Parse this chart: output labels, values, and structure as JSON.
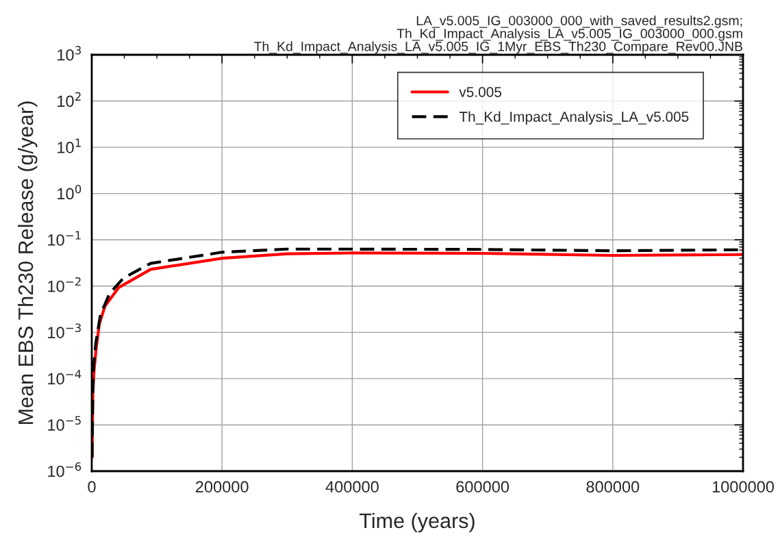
{
  "chart_data": {
    "type": "line",
    "title": "LA_v5.005_IG_003000_000_with_saved_results2.gsm;\nTh_Kd_Impact_Analysis_LA_v5.005_IG_003000_000.gsm\nTh_Kd_Impact_Analysis_LA_v5.005_IG_1Myr_EBS_Th230_Compare_Rev00.JNB",
    "xlabel": "Time (years)",
    "ylabel": "Mean EBS Th230 Release (g/year)",
    "series": [
      {
        "name": "v5.005",
        "color": "#ff0000",
        "line_style": "solid",
        "x": [
          500,
          1700,
          3500,
          7000,
          11600,
          20300,
          41300,
          90400,
          200000,
          300000,
          400000,
          600000,
          800000,
          1000000
        ],
        "values": [
          2e-06,
          4.9e-05,
          0.00015,
          0.00048,
          0.0015,
          0.0037,
          0.0093,
          0.023,
          0.04,
          0.05,
          0.052,
          0.051,
          0.046,
          0.048
        ]
      },
      {
        "name": "Th_Kd_Impact_Analysis_LA_v5.005",
        "color": "#000000",
        "line_style": "dashed",
        "x": [
          500,
          1500,
          2800,
          6300,
          13300,
          27300,
          48400,
          90400,
          200000,
          300000,
          400000,
          600000,
          800000,
          1000000
        ],
        "values": [
          2e-06,
          5e-05,
          0.00019,
          0.0006,
          0.0024,
          0.0069,
          0.0148,
          0.031,
          0.054,
          0.063,
          0.063,
          0.062,
          0.058,
          0.061
        ]
      }
    ],
    "log": "y",
    "xlim": [
      0,
      1000000
    ],
    "ylim": [
      1e-06,
      1000
    ],
    "xticks": [
      0,
      200000,
      400000,
      600000,
      800000,
      1000000
    ],
    "yticks": [
      {
        "value": 1e-06,
        "label": "10$^{−6}$"
      },
      {
        "value": 1e-05,
        "label": "10$^{−5}$"
      },
      {
        "value": 0.0001,
        "label": "10$^{−4}$"
      },
      {
        "value": 0.001,
        "label": "10$^{−3}$"
      },
      {
        "value": 0.01,
        "label": "10$^{−2}$"
      },
      {
        "value": 0.1,
        "label": "10$^{−1}$"
      },
      {
        "value": 1,
        "label": "10$^{0}$"
      },
      {
        "value": 10,
        "label": "10$^{1}$"
      },
      {
        "value": 100,
        "label": "10$^{2}$"
      },
      {
        "value": 1000,
        "label": "10$^{3}$"
      }
    ],
    "grid": true,
    "legend": "top right",
    "marker": "none"
  }
}
